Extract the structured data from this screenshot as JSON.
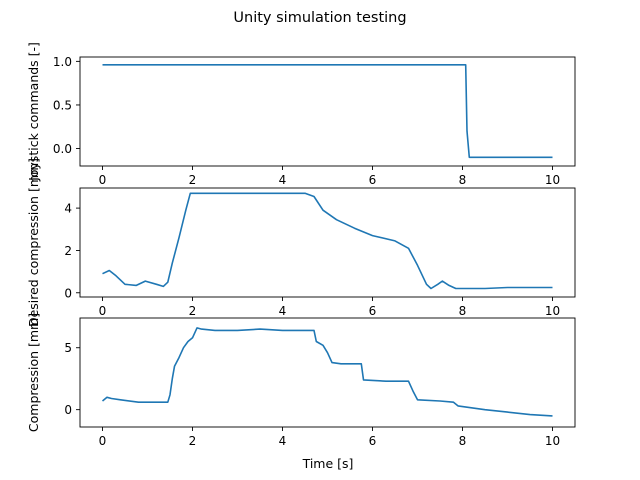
{
  "figure": {
    "title": "Unity simulation testing",
    "xlabel": "Time [s]",
    "line_color": "#1f77b4"
  },
  "chart_data": [
    {
      "type": "line",
      "title": "",
      "xlabel": "",
      "ylabel": "Joystick commands [-]",
      "xlim": [
        -0.5,
        10.5
      ],
      "ylim": [
        -0.2,
        1.05
      ],
      "xticks": [
        0,
        2,
        4,
        6,
        8,
        10
      ],
      "yticks": [
        0.0,
        0.5,
        1.0
      ],
      "ytick_labels": [
        "0.0",
        "0.5",
        "1.0"
      ],
      "grid": false,
      "series": [
        {
          "x": [
            0,
            0.5,
            1,
            2,
            3,
            4,
            5,
            6,
            7,
            7.8,
            8.07,
            8.1,
            8.15,
            8.5,
            9,
            9.5,
            10
          ],
          "y": [
            0.96,
            0.96,
            0.96,
            0.96,
            0.96,
            0.96,
            0.96,
            0.96,
            0.96,
            0.96,
            0.96,
            0.2,
            -0.1,
            -0.1,
            -0.1,
            -0.1,
            -0.1
          ]
        }
      ]
    },
    {
      "type": "line",
      "title": "",
      "xlabel": "",
      "ylabel": "Desired compression [mm]",
      "xlim": [
        -0.5,
        10.5
      ],
      "ylim": [
        -0.2,
        4.95
      ],
      "xticks": [
        0,
        2,
        4,
        6,
        8,
        10
      ],
      "yticks": [
        0,
        2,
        4
      ],
      "ytick_labels": [
        "0",
        "2",
        "4"
      ],
      "grid": false,
      "series": [
        {
          "x": [
            0,
            0.15,
            0.3,
            0.5,
            0.75,
            0.95,
            1.2,
            1.35,
            1.45,
            1.55,
            1.7,
            1.85,
            1.95,
            2.5,
            3.5,
            4.5,
            4.7,
            4.9,
            5.2,
            5.6,
            6.0,
            6.5,
            6.8,
            7.0,
            7.2,
            7.3,
            7.45,
            7.55,
            7.7,
            7.85,
            8.0,
            8.5,
            9.0,
            9.5,
            10.0
          ],
          "y": [
            0.9,
            1.05,
            0.8,
            0.4,
            0.35,
            0.55,
            0.4,
            0.3,
            0.5,
            1.4,
            2.6,
            3.9,
            4.7,
            4.7,
            4.7,
            4.7,
            4.55,
            3.9,
            3.45,
            3.05,
            2.7,
            2.45,
            2.1,
            1.3,
            0.4,
            0.2,
            0.4,
            0.55,
            0.35,
            0.2,
            0.2,
            0.2,
            0.25,
            0.25,
            0.25
          ]
        }
      ]
    },
    {
      "type": "line",
      "title": "",
      "xlabel": "Time [s]",
      "ylabel": "Compression [mm]",
      "xlim": [
        -0.5,
        10.5
      ],
      "ylim": [
        -1.4,
        7.4
      ],
      "xticks": [
        0,
        2,
        4,
        6,
        8,
        10
      ],
      "xtick_labels": [
        "0",
        "2",
        "4",
        "6",
        "8",
        "10"
      ],
      "yticks": [
        0,
        5
      ],
      "ytick_labels": [
        "0",
        "5"
      ],
      "grid": false,
      "series": [
        {
          "x": [
            0,
            0.1,
            0.2,
            0.4,
            0.8,
            1.2,
            1.45,
            1.5,
            1.55,
            1.6,
            1.7,
            1.8,
            1.9,
            2.0,
            2.1,
            2.2,
            2.5,
            3.0,
            3.5,
            4.0,
            4.5,
            4.7,
            4.75,
            4.9,
            5.0,
            5.1,
            5.3,
            5.6,
            5.75,
            5.8,
            6.3,
            6.8,
            6.9,
            7.0,
            7.5,
            7.8,
            7.9,
            8.5,
            9.0,
            9.5,
            10.0
          ],
          "y": [
            0.7,
            1.0,
            0.9,
            0.8,
            0.6,
            0.6,
            0.6,
            1.2,
            2.5,
            3.5,
            4.2,
            5.0,
            5.5,
            5.8,
            6.6,
            6.5,
            6.4,
            6.4,
            6.5,
            6.4,
            6.4,
            6.4,
            5.5,
            5.2,
            4.6,
            3.8,
            3.7,
            3.7,
            3.7,
            2.4,
            2.3,
            2.3,
            1.5,
            0.8,
            0.7,
            0.6,
            0.3,
            0.0,
            -0.2,
            -0.4,
            -0.5
          ]
        }
      ]
    }
  ]
}
